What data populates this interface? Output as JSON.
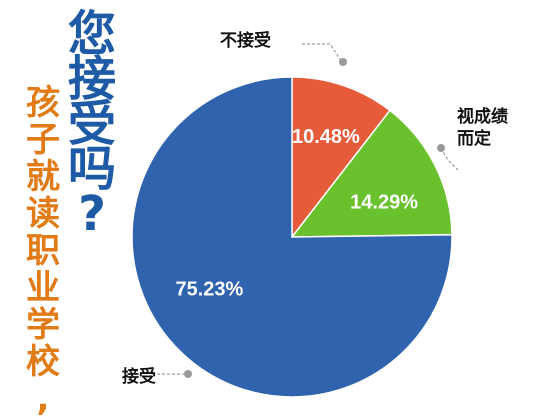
{
  "title": "您接受吗?",
  "subtitle": "孩子就读职业学校,",
  "chart_data": {
    "type": "pie",
    "slices": [
      {
        "label": "不接受",
        "value": 10.48,
        "value_label": "10.48%",
        "color": "#e65c3b"
      },
      {
        "label": "视成绩而定",
        "value": 14.29,
        "value_label": "14.29%",
        "color": "#6ac12e"
      },
      {
        "label": "接受",
        "value": 75.23,
        "value_label": "75.23%",
        "color": "#2f63ad"
      }
    ],
    "callout_lines": [
      [
        "不接受"
      ],
      [
        "视成绩",
        "而定"
      ],
      [
        "接受"
      ]
    ],
    "start_angle": "12 o'clock",
    "direction": "clockwise"
  }
}
